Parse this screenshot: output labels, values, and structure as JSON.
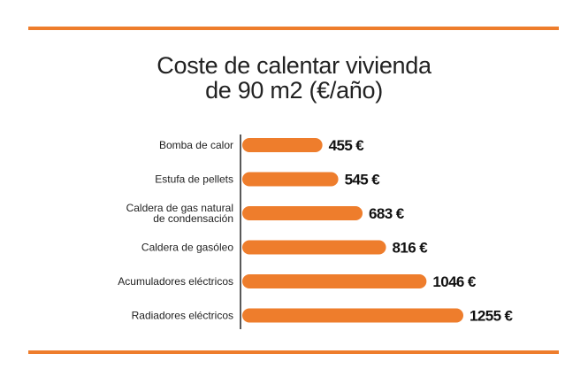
{
  "chart_data": {
    "type": "bar",
    "orientation": "horizontal",
    "title_lines": [
      "Coste de calentar vivienda",
      "de 90 m2 (€/año)"
    ],
    "categories": [
      [
        "Bomba de calor"
      ],
      [
        "Estufa de pellets"
      ],
      [
        "Caldera de gas natural",
        "de condensación"
      ],
      [
        "Caldera de gasóleo"
      ],
      [
        "Acumuladores eléctricos"
      ],
      [
        "Radiadores eléctricos"
      ]
    ],
    "values": [
      455,
      545,
      683,
      816,
      1046,
      1255
    ],
    "value_labels": [
      "455 €",
      "545 €",
      "683 €",
      "816 €",
      "1046 €",
      "1255 €"
    ],
    "grid": false,
    "legend": "none",
    "colors": {
      "bar": "#ee7d2c",
      "rule": "#ee7d2c",
      "axis": "#222222"
    }
  }
}
